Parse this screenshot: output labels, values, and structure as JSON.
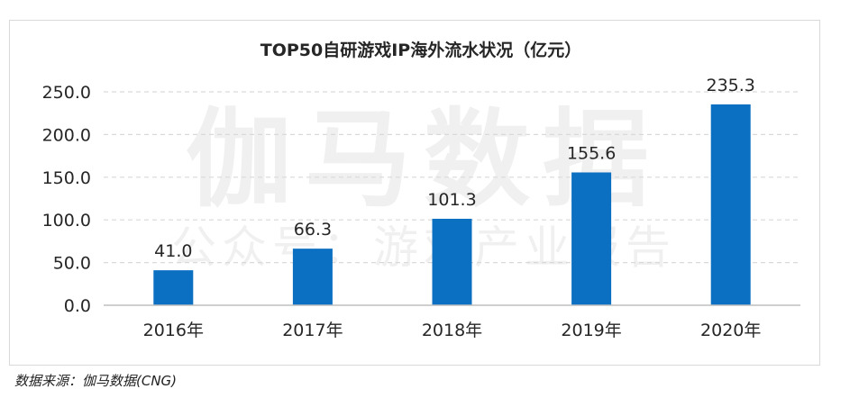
{
  "watermark": {
    "main": "伽马数据",
    "sub": "公众号：游戏产业报告"
  },
  "source_text": "数据来源：伽马数据(CNG)",
  "colors": {
    "bar": "#0b6fc2",
    "axis": "#bfbfbf",
    "grid": "#d9d9d9",
    "text": "#262626"
  },
  "chart_data": {
    "type": "bar",
    "title": "TOP50自研游戏IP海外流水状况（亿元）",
    "categories": [
      "2016年",
      "2017年",
      "2018年",
      "2019年",
      "2020年"
    ],
    "values": [
      41.0,
      66.3,
      101.3,
      155.6,
      235.3
    ],
    "value_labels": [
      "41.0",
      "66.3",
      "101.3",
      "155.6",
      "235.3"
    ],
    "ylim": [
      0,
      250
    ],
    "yticks": [
      "0.0",
      "50.0",
      "100.0",
      "150.0",
      "200.0",
      "250.0"
    ],
    "ytick_values": [
      0,
      50,
      100,
      150,
      200,
      250
    ],
    "grid": true,
    "legend": "none",
    "xlabel": "",
    "ylabel": ""
  }
}
